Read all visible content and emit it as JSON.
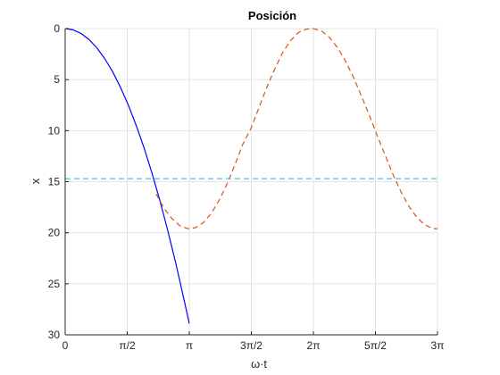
{
  "chart_data": {
    "type": "line",
    "title": "Posición",
    "xlabel": "ω·t",
    "ylabel": "x",
    "xlim": [
      0,
      9.42478
    ],
    "ylim": [
      0,
      30
    ],
    "y_reversed": true,
    "grid": true,
    "x_ticks": [
      {
        "value": 0,
        "label": "0"
      },
      {
        "value": 1.5708,
        "label": "π/2"
      },
      {
        "value": 3.1416,
        "label": "π"
      },
      {
        "value": 4.7124,
        "label": "3π/2"
      },
      {
        "value": 6.2832,
        "label": "2π"
      },
      {
        "value": 7.854,
        "label": "5π/2"
      },
      {
        "value": 9.4248,
        "label": "3π"
      }
    ],
    "y_ticks": [
      {
        "value": 0,
        "label": "0"
      },
      {
        "value": 5,
        "label": "5"
      },
      {
        "value": 10,
        "label": "10"
      },
      {
        "value": 15,
        "label": "15"
      },
      {
        "value": 20,
        "label": "20"
      },
      {
        "value": 25,
        "label": "25"
      },
      {
        "value": 30,
        "label": "30"
      }
    ],
    "series": [
      {
        "style": "solid",
        "color": "#0000ff",
        "x": [
          0,
          0.2,
          0.4,
          0.6,
          0.8,
          1.0,
          1.2,
          1.4,
          1.6,
          1.8,
          2.0,
          2.2,
          2.4,
          2.6,
          2.8,
          3.0,
          3.1416
        ],
        "y": [
          0,
          0.12,
          0.47,
          1.06,
          1.88,
          2.93,
          4.22,
          5.75,
          7.51,
          9.5,
          11.73,
          14.19,
          16.89,
          19.82,
          22.99,
          26.39,
          28.9
        ]
      },
      {
        "style": "dashed",
        "color": "#d95319",
        "x": [
          2.3,
          2.5,
          2.7,
          2.9,
          3.1,
          3.3,
          3.5,
          3.7,
          3.9,
          4.1,
          4.3,
          4.5,
          4.7,
          4.9,
          5.1,
          5.3,
          5.5,
          5.7,
          5.9,
          6.1,
          6.2832,
          6.5,
          6.7,
          6.9,
          7.1,
          7.3,
          7.5,
          7.7,
          7.9,
          8.1,
          8.3,
          8.5,
          8.7,
          8.9,
          9.1,
          9.3,
          9.4248
        ],
        "y": [
          16.2,
          17.6,
          18.6,
          19.3,
          19.6,
          19.5,
          19.0,
          18.1,
          16.8,
          15.2,
          13.3,
          11.3,
          9.8,
          7.8,
          5.8,
          4.0,
          2.4,
          1.2,
          0.4,
          0.05,
          0,
          0.25,
          0.9,
          1.9,
          3.2,
          4.8,
          6.6,
          8.5,
          10.5,
          12.4,
          14.3,
          16.0,
          17.4,
          18.5,
          19.2,
          19.6,
          19.6
        ]
      },
      {
        "style": "dashed",
        "color": "#4dbeee",
        "x": [
          0,
          9.42478
        ],
        "y": [
          14.7,
          14.7
        ]
      }
    ]
  }
}
